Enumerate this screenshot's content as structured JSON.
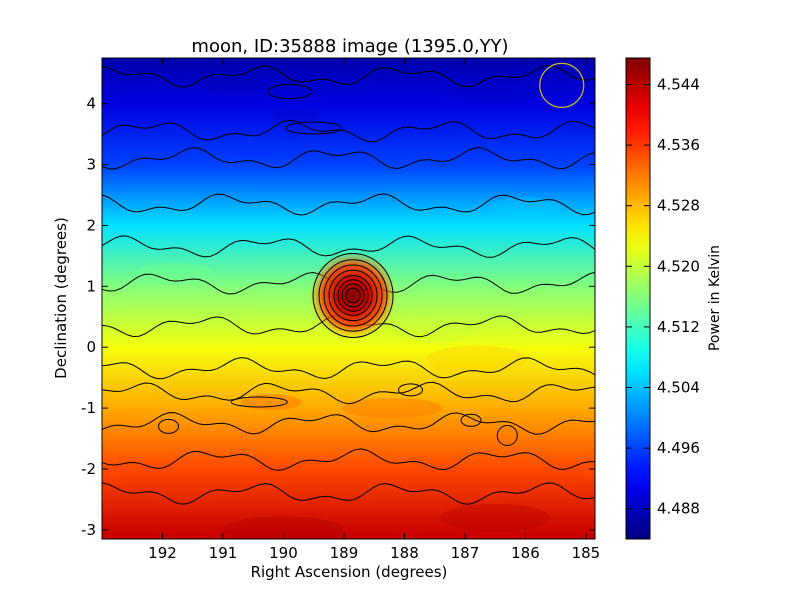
{
  "chart_data": {
    "type": "heatmap",
    "title": "moon, ID:35888 image (1395.0,YY)",
    "xlabel": "Right Ascension (degrees)",
    "ylabel": "Declination (degrees)",
    "xlim": [
      193.0,
      184.85
    ],
    "ylim": [
      -3.15,
      4.75
    ],
    "x_ticks": [
      192,
      191,
      190,
      189,
      188,
      187,
      186,
      185
    ],
    "y_ticks": [
      -3,
      -2,
      -1,
      0,
      1,
      2,
      3,
      4
    ],
    "colorbar": {
      "label": "Power in Kelvin",
      "range": [
        4.484,
        4.5475
      ],
      "ticks": [
        "4.544",
        "4.536",
        "4.528",
        "4.520",
        "4.512",
        "4.504",
        "4.496",
        "4.488"
      ],
      "colormap": "jet"
    },
    "field": {
      "description_of_bands": "power decreases with declination",
      "bands": [
        {
          "dec": -3.1,
          "value": 4.543
        },
        {
          "dec": -2.0,
          "value": 4.535
        },
        {
          "dec": -1.0,
          "value": 4.529
        },
        {
          "dec": 0.0,
          "value": 4.523
        },
        {
          "dec": 1.0,
          "value": 4.516
        },
        {
          "dec": 2.0,
          "value": 4.506
        },
        {
          "dec": 3.0,
          "value": 4.496
        },
        {
          "dec": 4.0,
          "value": 4.49
        },
        {
          "dec": 4.7,
          "value": 4.487
        }
      ],
      "peak": {
        "ra": 188.85,
        "dec": 0.85,
        "value": 4.546
      }
    },
    "beam_marker": {
      "ra": 185.4,
      "dec": 4.3,
      "color": "#c8b432"
    },
    "grid": false,
    "legend": "none"
  }
}
